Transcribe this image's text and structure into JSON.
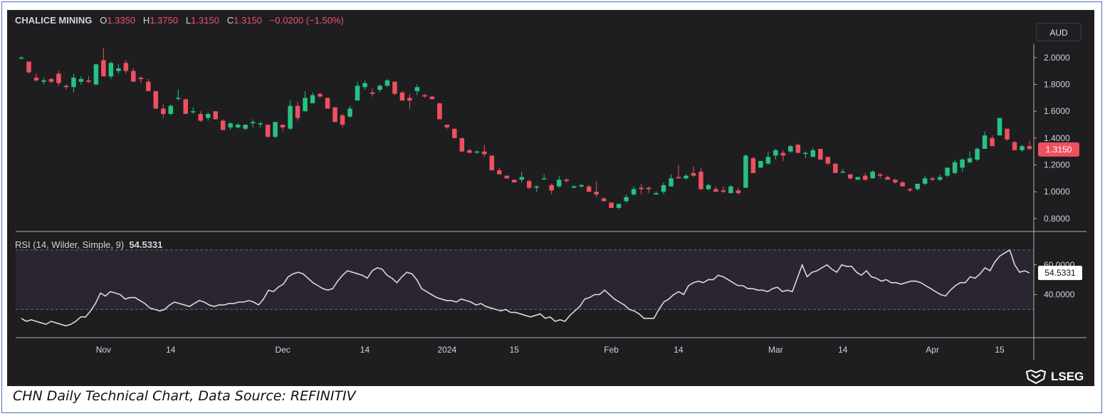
{
  "header": {
    "name": "CHALICE MINING",
    "o_label": "O",
    "o_value": "1.3350",
    "h_label": "H",
    "h_value": "1.3750",
    "l_label": "L",
    "l_value": "1.3150",
    "c_label": "C",
    "c_value": "1.3150",
    "change": "−0.0200 (−1.50%)"
  },
  "currency_button": "AUD",
  "rsi_header": {
    "label": "RSI (14, Wilder, Simple, 9)",
    "value": "54.5331"
  },
  "caption": "CHN Daily Technical Chart, Data Source: REFINITIV",
  "logo_text": "LSEG",
  "colors": {
    "up": "#26c281",
    "down": "#ef5060",
    "rsi_line": "#d9d9d9",
    "background": "#1e1e20",
    "rsi_band": "#2a2531"
  },
  "chart_data": [
    {
      "type": "candlestick",
      "title": "CHALICE MINING",
      "ylim": [
        0.72,
        2.1
      ],
      "y_ticks": [
        "2.0000",
        "1.8000",
        "1.6000",
        "1.4000",
        "1.2000",
        "1.0000",
        "0.8000"
      ],
      "x_ticks": [
        "Nov",
        "14",
        "Dec",
        "14",
        "2024",
        "15",
        "Feb",
        "14",
        "Mar",
        "14",
        "Apr",
        "15"
      ],
      "last_price_label": "1.3150",
      "ohlc": [
        [
          2.0,
          2.01,
          1.99,
          2.0
        ],
        [
          1.97,
          1.97,
          1.88,
          1.89
        ],
        [
          1.85,
          1.88,
          1.82,
          1.83
        ],
        [
          1.82,
          1.85,
          1.8,
          1.83
        ],
        [
          1.84,
          1.85,
          1.81,
          1.82
        ],
        [
          1.88,
          1.9,
          1.79,
          1.81
        ],
        [
          1.79,
          1.8,
          1.76,
          1.78
        ],
        [
          1.78,
          1.88,
          1.74,
          1.85
        ],
        [
          1.82,
          1.86,
          1.8,
          1.84
        ],
        [
          1.83,
          1.86,
          1.81,
          1.82
        ],
        [
          1.8,
          1.95,
          1.79,
          1.95
        ],
        [
          1.98,
          2.07,
          1.86,
          1.86
        ],
        [
          1.86,
          1.97,
          1.84,
          1.96
        ],
        [
          1.9,
          1.95,
          1.88,
          1.92
        ],
        [
          1.96,
          1.98,
          1.88,
          1.9
        ],
        [
          1.9,
          1.92,
          1.82,
          1.82
        ],
        [
          1.85,
          1.86,
          1.81,
          1.84
        ],
        [
          1.82,
          1.84,
          1.75,
          1.75
        ],
        [
          1.75,
          1.75,
          1.62,
          1.62
        ],
        [
          1.62,
          1.65,
          1.55,
          1.58
        ],
        [
          1.58,
          1.65,
          1.57,
          1.64
        ],
        [
          1.7,
          1.76,
          1.68,
          1.7
        ],
        [
          1.69,
          1.69,
          1.58,
          1.58
        ],
        [
          1.6,
          1.63,
          1.58,
          1.6
        ],
        [
          1.58,
          1.6,
          1.52,
          1.53
        ],
        [
          1.55,
          1.59,
          1.53,
          1.58
        ],
        [
          1.6,
          1.6,
          1.54,
          1.54
        ],
        [
          1.53,
          1.54,
          1.46,
          1.46
        ],
        [
          1.48,
          1.52,
          1.46,
          1.51
        ],
        [
          1.48,
          1.51,
          1.47,
          1.5
        ],
        [
          1.47,
          1.5,
          1.46,
          1.5
        ],
        [
          1.51,
          1.54,
          1.48,
          1.52
        ],
        [
          1.51,
          1.52,
          1.48,
          1.51
        ],
        [
          1.5,
          1.5,
          1.4,
          1.41
        ],
        [
          1.41,
          1.52,
          1.4,
          1.52
        ],
        [
          1.5,
          1.5,
          1.45,
          1.48
        ],
        [
          1.47,
          1.68,
          1.46,
          1.64
        ],
        [
          1.64,
          1.67,
          1.53,
          1.55
        ],
        [
          1.6,
          1.75,
          1.6,
          1.7
        ],
        [
          1.66,
          1.74,
          1.66,
          1.72
        ],
        [
          1.73,
          1.74,
          1.7,
          1.71
        ],
        [
          1.7,
          1.7,
          1.62,
          1.62
        ],
        [
          1.63,
          1.63,
          1.52,
          1.52
        ],
        [
          1.57,
          1.58,
          1.48,
          1.5
        ],
        [
          1.56,
          1.64,
          1.55,
          1.62
        ],
        [
          1.68,
          1.82,
          1.68,
          1.79
        ],
        [
          1.78,
          1.83,
          1.76,
          1.81
        ],
        [
          1.74,
          1.77,
          1.71,
          1.73
        ],
        [
          1.76,
          1.8,
          1.74,
          1.79
        ],
        [
          1.79,
          1.84,
          1.78,
          1.83
        ],
        [
          1.82,
          1.82,
          1.72,
          1.73
        ],
        [
          1.74,
          1.75,
          1.68,
          1.68
        ],
        [
          1.7,
          1.73,
          1.62,
          1.68
        ],
        [
          1.75,
          1.8,
          1.72,
          1.78
        ],
        [
          1.72,
          1.73,
          1.7,
          1.71
        ],
        [
          1.71,
          1.71,
          1.69,
          1.69
        ],
        [
          1.66,
          1.66,
          1.55,
          1.54
        ],
        [
          1.5,
          1.5,
          1.47,
          1.48
        ],
        [
          1.47,
          1.47,
          1.4,
          1.4
        ],
        [
          1.4,
          1.4,
          1.3,
          1.3
        ],
        [
          1.31,
          1.32,
          1.29,
          1.29
        ],
        [
          1.3,
          1.31,
          1.28,
          1.3
        ],
        [
          1.3,
          1.35,
          1.26,
          1.28
        ],
        [
          1.27,
          1.27,
          1.16,
          1.16
        ],
        [
          1.16,
          1.18,
          1.13,
          1.13
        ],
        [
          1.12,
          1.12,
          1.1,
          1.1
        ],
        [
          1.09,
          1.09,
          1.07,
          1.07
        ],
        [
          1.09,
          1.15,
          1.07,
          1.11
        ],
        [
          1.08,
          1.09,
          1.02,
          1.03
        ],
        [
          1.03,
          1.05,
          1.0,
          1.04
        ],
        [
          1.1,
          1.13,
          1.09,
          1.1
        ],
        [
          1.05,
          1.06,
          0.98,
          1.01
        ],
        [
          1.04,
          1.12,
          1.03,
          1.09
        ],
        [
          1.09,
          1.1,
          1.07,
          1.08
        ],
        [
          1.03,
          1.05,
          1.03,
          1.04
        ],
        [
          1.04,
          1.06,
          1.03,
          1.05
        ],
        [
          1.04,
          1.05,
          1.0,
          1.0
        ],
        [
          1.0,
          1.08,
          0.96,
          0.98
        ],
        [
          0.95,
          0.96,
          0.93,
          0.93
        ],
        [
          0.92,
          0.92,
          0.88,
          0.88
        ],
        [
          0.88,
          0.9,
          0.87,
          0.91
        ],
        [
          0.93,
          0.98,
          0.92,
          0.96
        ],
        [
          0.98,
          1.04,
          0.97,
          1.02
        ],
        [
          1.03,
          1.06,
          0.98,
          1.02
        ],
        [
          1.03,
          1.04,
          0.99,
          1.02
        ],
        [
          0.98,
          1.0,
          0.99,
          0.99
        ],
        [
          1.0,
          1.07,
          0.98,
          1.05
        ],
        [
          1.04,
          1.13,
          1.04,
          1.1
        ],
        [
          1.11,
          1.2,
          1.1,
          1.1
        ],
        [
          1.1,
          1.13,
          1.09,
          1.12
        ],
        [
          1.14,
          1.19,
          1.11,
          1.12
        ],
        [
          1.15,
          1.18,
          1.01,
          1.02
        ],
        [
          1.02,
          1.06,
          1.01,
          1.05
        ],
        [
          1.02,
          1.04,
          1.0,
          1.0
        ],
        [
          1.01,
          1.04,
          0.99,
          1.0
        ],
        [
          0.99,
          1.05,
          0.99,
          1.04
        ],
        [
          1.01,
          1.03,
          0.98,
          0.99
        ],
        [
          1.03,
          1.28,
          1.03,
          1.27
        ],
        [
          1.25,
          1.26,
          1.14,
          1.14
        ],
        [
          1.18,
          1.23,
          1.18,
          1.23
        ],
        [
          1.21,
          1.3,
          1.2,
          1.26
        ],
        [
          1.27,
          1.32,
          1.24,
          1.31
        ],
        [
          1.29,
          1.31,
          1.23,
          1.27
        ],
        [
          1.3,
          1.35,
          1.29,
          1.34
        ],
        [
          1.35,
          1.36,
          1.29,
          1.29
        ],
        [
          1.29,
          1.3,
          1.25,
          1.29
        ],
        [
          1.26,
          1.33,
          1.26,
          1.31
        ],
        [
          1.32,
          1.32,
          1.24,
          1.24
        ],
        [
          1.26,
          1.26,
          1.2,
          1.21
        ],
        [
          1.21,
          1.21,
          1.14,
          1.14
        ],
        [
          1.15,
          1.17,
          1.14,
          1.15
        ],
        [
          1.13,
          1.13,
          1.09,
          1.1
        ],
        [
          1.09,
          1.11,
          1.09,
          1.11
        ],
        [
          1.12,
          1.14,
          1.08,
          1.09
        ],
        [
          1.1,
          1.16,
          1.1,
          1.15
        ],
        [
          1.13,
          1.14,
          1.1,
          1.12
        ],
        [
          1.11,
          1.12,
          1.09,
          1.09
        ],
        [
          1.09,
          1.1,
          1.06,
          1.07
        ],
        [
          1.07,
          1.08,
          1.04,
          1.04
        ],
        [
          1.02,
          1.03,
          1.0,
          1.01
        ],
        [
          1.02,
          1.06,
          1.01,
          1.06
        ],
        [
          1.06,
          1.12,
          1.05,
          1.1
        ],
        [
          1.1,
          1.11,
          1.08,
          1.09
        ],
        [
          1.09,
          1.13,
          1.08,
          1.11
        ],
        [
          1.12,
          1.18,
          1.11,
          1.18
        ],
        [
          1.14,
          1.24,
          1.13,
          1.22
        ],
        [
          1.18,
          1.25,
          1.15,
          1.24
        ],
        [
          1.22,
          1.3,
          1.21,
          1.25
        ],
        [
          1.24,
          1.33,
          1.23,
          1.32
        ],
        [
          1.32,
          1.45,
          1.32,
          1.42
        ],
        [
          1.4,
          1.42,
          1.34,
          1.34
        ],
        [
          1.42,
          1.55,
          1.42,
          1.55
        ],
        [
          1.47,
          1.47,
          1.38,
          1.39
        ],
        [
          1.37,
          1.38,
          1.31,
          1.31
        ],
        [
          1.31,
          1.35,
          1.3,
          1.34
        ],
        [
          1.34,
          1.38,
          1.31,
          1.32
        ]
      ]
    },
    {
      "type": "line",
      "title": "RSI (14, Wilder, Simple, 9)",
      "ylim": [
        12,
        80
      ],
      "y_ticks": [
        "60.0000",
        "40.0000"
      ],
      "upper_band": 70,
      "lower_band": 30,
      "last_value_label": "54.5331",
      "values": [
        24,
        22,
        23,
        22,
        21,
        20,
        22,
        21,
        20,
        19,
        20,
        22,
        25,
        25,
        29,
        34,
        41,
        39,
        42,
        41,
        40,
        37,
        38,
        38,
        36,
        34,
        31,
        30,
        29,
        30,
        33,
        35,
        34,
        33,
        32,
        34,
        36,
        35,
        33,
        32,
        33,
        33,
        34,
        34,
        35,
        35,
        36,
        35,
        33,
        37,
        43,
        42,
        45,
        47,
        52,
        54,
        55,
        54,
        51,
        48,
        46,
        44,
        43,
        44,
        49,
        53,
        56,
        55,
        54,
        53,
        51,
        56,
        58,
        57,
        53,
        51,
        48,
        52,
        55,
        54,
        50,
        44,
        42,
        40,
        38,
        37,
        36,
        36,
        35,
        37,
        36,
        35,
        33,
        34,
        32,
        31,
        30,
        29,
        30,
        28,
        28,
        27,
        26,
        25,
        26,
        27,
        24,
        25,
        22,
        23,
        22,
        26,
        29,
        32,
        37,
        38,
        40,
        40,
        43,
        40,
        37,
        35,
        33,
        30,
        29,
        27,
        24,
        24,
        24,
        30,
        35,
        37,
        40,
        42,
        40,
        46,
        48,
        49,
        48,
        50,
        50,
        53,
        52,
        50,
        48,
        46,
        46,
        44,
        44,
        43,
        43,
        42,
        44,
        45,
        42,
        43,
        42,
        51,
        60,
        52,
        55,
        56,
        58,
        60,
        57,
        55,
        60,
        59,
        59,
        55,
        53,
        56,
        52,
        51,
        49,
        50,
        48,
        48,
        47,
        48,
        49,
        49,
        48,
        46,
        44,
        42,
        40,
        39,
        43,
        46,
        48,
        48,
        52,
        51,
        54,
        58,
        56,
        62,
        66,
        68,
        70,
        60,
        55,
        56,
        54.53
      ]
    }
  ]
}
